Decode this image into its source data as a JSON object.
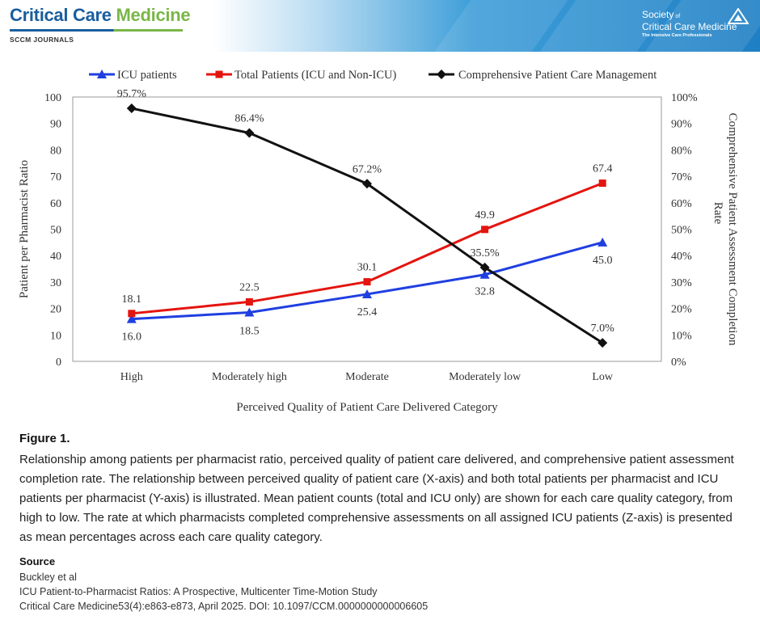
{
  "header": {
    "journal_word1": "Critical Care",
    "journal_word2": "Medicine",
    "journal_sub": "SCCM JOURNALS",
    "society_line1a": "Society",
    "society_line1b": "of",
    "society_line2": "Critical Care Medicine",
    "society_tagline": "The Intensive Care Professionals"
  },
  "colors": {
    "icu": "#1f3fe0",
    "total": "#e4140f",
    "comprehensive": "#111111",
    "header_blue": "#1a5e9e",
    "header_green": "#7ab648"
  },
  "chart_data": {
    "type": "line",
    "title": "",
    "xlabel": "Perceived Quality of Patient Care Delivered Category",
    "ylabel": "Patient per Pharmacist Ratio",
    "y2label_line1": "Comprehensive Patient Assessment Completion",
    "y2label_line2": "Rate",
    "categories": [
      "High",
      "Moderately high",
      "Moderate",
      "Moderately low",
      "Low"
    ],
    "ylim": [
      0,
      100
    ],
    "yticks": [
      "0",
      "10",
      "20",
      "30",
      "40",
      "50",
      "60",
      "70",
      "80",
      "90",
      "100"
    ],
    "y2lim": [
      0,
      100
    ],
    "y2ticks": [
      "0%",
      "10%",
      "20%",
      "30%",
      "40%",
      "50%",
      "60%",
      "70%",
      "80%",
      "90%",
      "100%"
    ],
    "legend_position": "top",
    "series": [
      {
        "name": "ICU patients",
        "axis": "left",
        "marker": "triangle",
        "values": [
          16.0,
          18.5,
          25.4,
          32.8,
          45.0
        ],
        "labels": [
          "16.0",
          "18.5",
          "25.4",
          "32.8",
          "45.0"
        ]
      },
      {
        "name": "Total Patients (ICU and Non-ICU)",
        "axis": "left",
        "marker": "square",
        "values": [
          18.1,
          22.5,
          30.1,
          49.9,
          67.4
        ],
        "labels": [
          "18.1",
          "22.5",
          "30.1",
          "49.9",
          "67.4"
        ]
      },
      {
        "name": "Comprehensive Patient Care Management",
        "axis": "right",
        "marker": "diamond",
        "values": [
          95.7,
          86.4,
          67.2,
          35.5,
          7.0
        ],
        "labels": [
          "95.7%",
          "86.4%",
          "67.2%",
          "35.5%",
          "7.0%"
        ]
      }
    ]
  },
  "caption": {
    "figure_label": "Figure 1.",
    "text": "Relationship among patients per pharmacist ratio, perceived quality of patient care delivered, and comprehensive patient assessment completion rate. The relationship between perceived quality of patient care (X-axis) and both total patients per pharmacist and ICU patients per pharmacist (Y-axis) is illustrated. Mean patient counts (total and ICU only) are shown for each care quality category, from high to low. The rate at which pharmacists completed comprehensive assessments on all assigned ICU patients (Z-axis) is presented as mean percentages across each care quality category."
  },
  "source": {
    "label": "Source",
    "authors": "Buckley et al",
    "title": "ICU Patient-to-Pharmacist Ratios: A Prospective, Multicenter Time-Motion Study",
    "citation": "Critical Care Medicine53(4):e863-e873, April 2025.  DOI: 10.1097/CCM.0000000000006605"
  }
}
